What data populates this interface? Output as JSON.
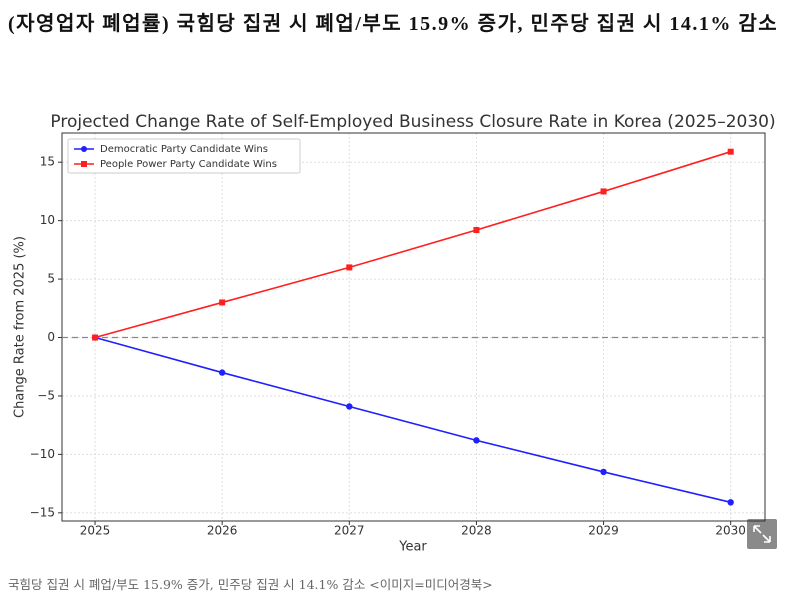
{
  "header": {
    "title": "(자영업자 폐업률) 국힘당 집권 시 폐업/부도 15.9% 증가, 민주당 집권 시 14.1% 감소"
  },
  "chart_data": {
    "type": "line",
    "title": "Projected Change Rate of Self-Employed Business Closure Rate in Korea (2025–2030)",
    "x_label": "Year",
    "y_label": "Change Rate from 2025 (%)",
    "x": [
      2025,
      2026,
      2027,
      2028,
      2029,
      2030
    ],
    "series": [
      {
        "name": "Democratic Party Candidate Wins",
        "color": "#1f1fff",
        "marker": "circle",
        "values": [
          0,
          -3.0,
          -5.9,
          -8.8,
          -11.5,
          -14.1
        ]
      },
      {
        "name": "People Power Party Candidate Wins",
        "color": "#ff1f1f",
        "marker": "square",
        "values": [
          0,
          3.0,
          6.0,
          9.2,
          12.5,
          15.9
        ]
      }
    ],
    "xlim": [
      2024.74,
      2030.27
    ],
    "ylim": [
      -15.7,
      17.5
    ],
    "xticks": [
      2025,
      2026,
      2027,
      2028,
      2029,
      2030
    ],
    "yticks": [
      {
        "value": -15,
        "label": "−15"
      },
      {
        "value": -10,
        "label": "−10"
      },
      {
        "value": -5,
        "label": "−5"
      },
      0,
      5,
      10,
      15
    ],
    "reference_line": 0,
    "grid": true,
    "legend": "upper left"
  },
  "caption": "국힘당 집권 시 폐업/부도 15.9% 증가, 민주당 집권 시 14.1% 감소 <이미지=미디어경북>"
}
